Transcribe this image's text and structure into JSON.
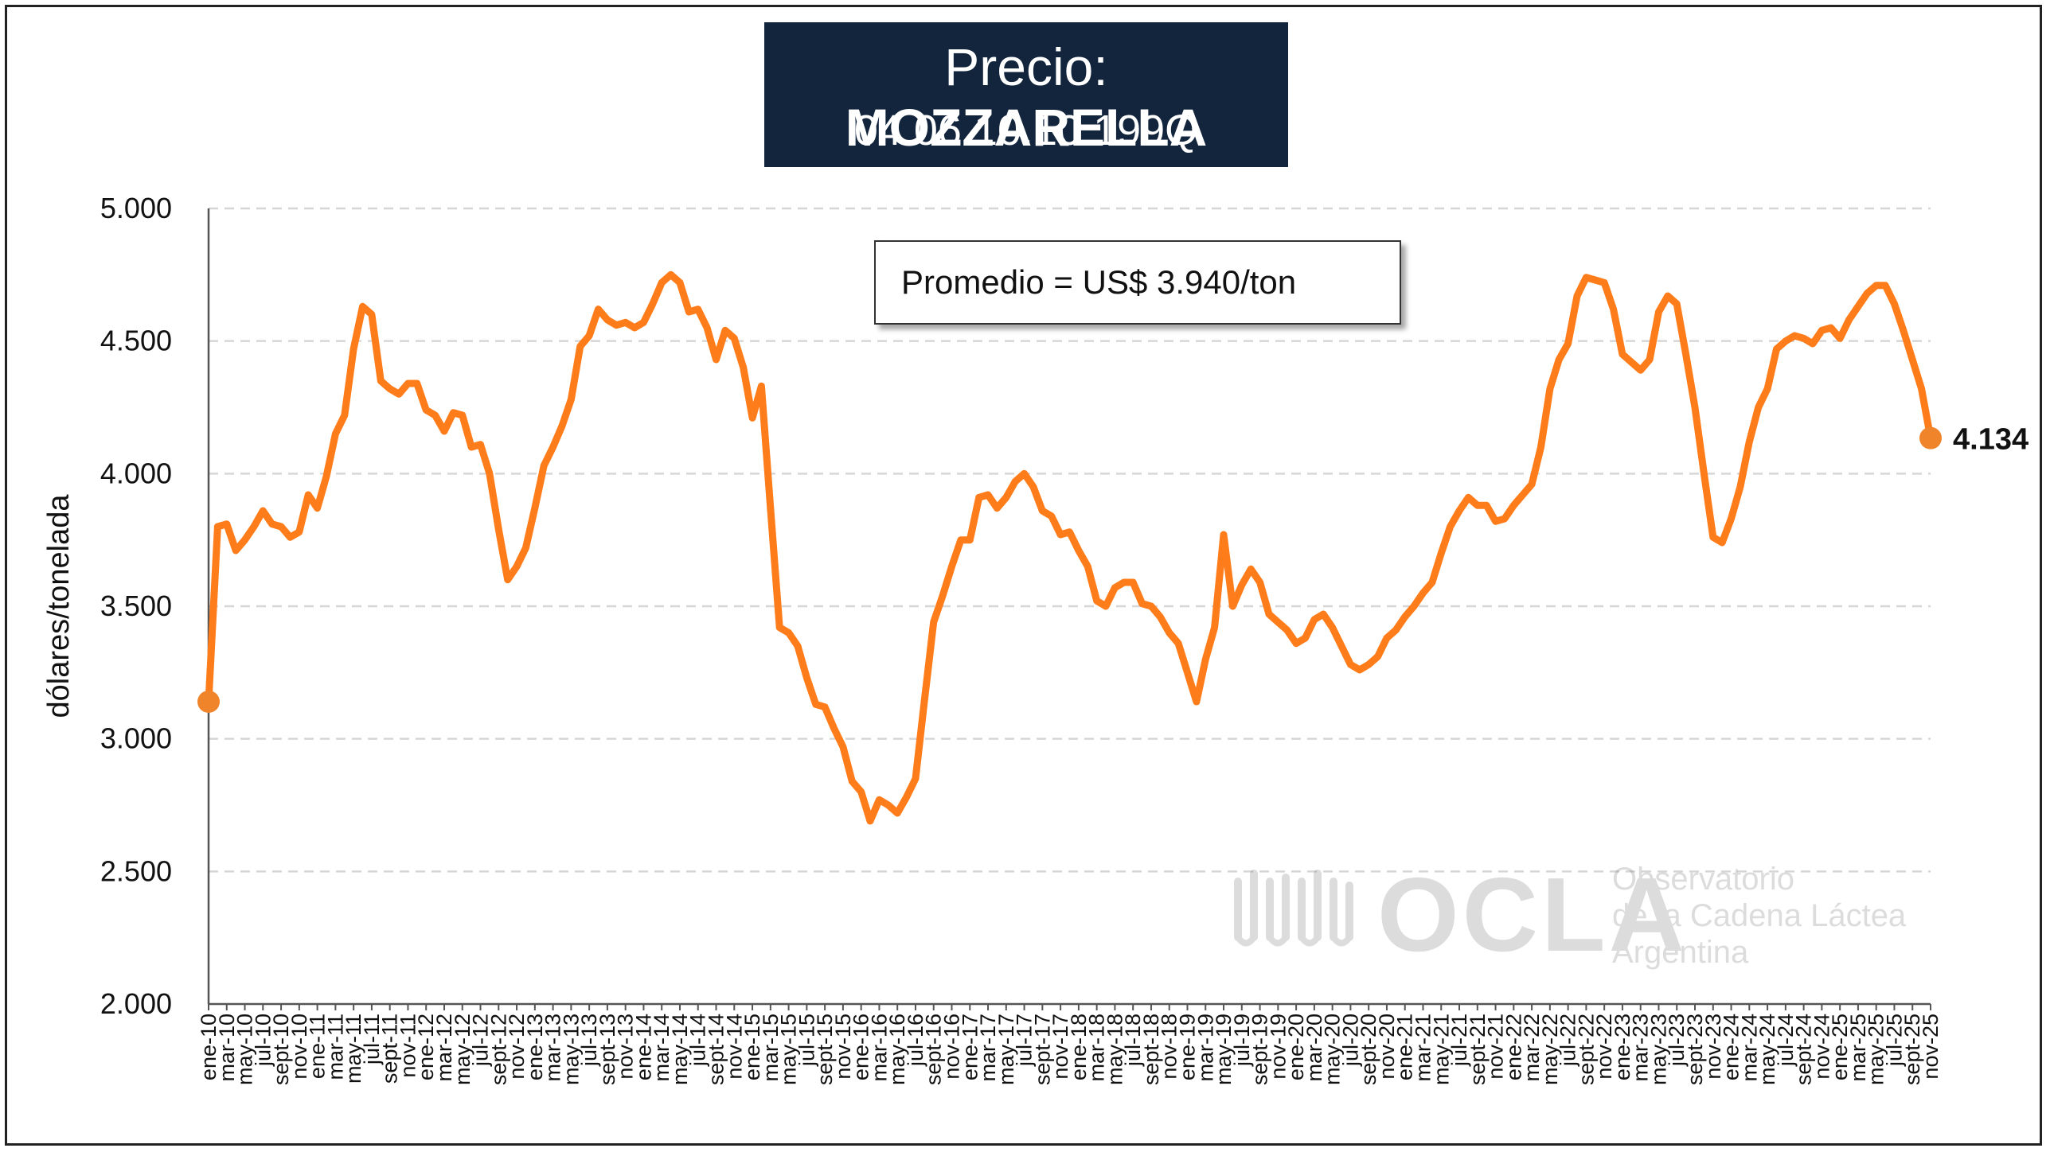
{
  "title": {
    "prefix": "Precio: ",
    "product": "MOZZARELLA",
    "code": "04.06.10.10.199Q"
  },
  "annotation": {
    "promedio": "Promedio = US$ 3.940/ton"
  },
  "watermark": {
    "logo_text": "OCLA",
    "line1": "Observatorio",
    "line2": "de la Cadena Láctea",
    "line3": "Argentina"
  },
  "colors": {
    "line": "#ff7c1a",
    "marker": "#f0842a",
    "grid": "#d6d6d6",
    "title_bg": "#13253d"
  },
  "chart_data": {
    "type": "line",
    "title": "Precio: MOZZARELLA",
    "subtitle": "04.06.10.10.199Q",
    "ylabel": "dólares/tonelada",
    "xlabel": "",
    "ylim": [
      2000,
      5000
    ],
    "yticks": [
      2000,
      2500,
      3000,
      3500,
      4000,
      4500,
      5000
    ],
    "ytick_labels": [
      "2.000",
      "2.500",
      "3.000",
      "3.500",
      "4.000",
      "4.500",
      "5.000"
    ],
    "grid": true,
    "x_start": "ene-10",
    "x_end": "nov-25",
    "last_value_label": "4.134",
    "x_tick_labels": [
      "ene-10",
      "mar-10",
      "may-10",
      "jul-10",
      "sept-10",
      "nov-10",
      "ene-11",
      "mar-11",
      "may-11",
      "jul-11",
      "sept-11",
      "nov-11",
      "ene-12",
      "mar-12",
      "may-12",
      "jul-12",
      "sept-12",
      "nov-12",
      "ene-13",
      "mar-13",
      "may-13",
      "jul-13",
      "sept-13",
      "nov-13",
      "ene-14",
      "mar-14",
      "may-14",
      "jul-14",
      "sept-14",
      "nov-14",
      "ene-15",
      "mar-15",
      "may-15",
      "jul-15",
      "sept-15",
      "nov-15",
      "ene-16",
      "mar-16",
      "may-16",
      "jul-16",
      "sept-16",
      "nov-16",
      "ene-17",
      "mar-17",
      "may-17",
      "jul-17",
      "sept-17",
      "nov-17",
      "ene-18",
      "mar-18",
      "may-18",
      "jul-18",
      "sept-18",
      "nov-18",
      "ene-19",
      "mar-19",
      "may-19",
      "jul-19",
      "sept-19",
      "nov-19",
      "ene-20",
      "mar-20",
      "may-20",
      "jul-20",
      "sept-20",
      "nov-20",
      "ene-21",
      "mar-21",
      "may-21",
      "jul-21",
      "sept-21",
      "nov-21",
      "ene-22",
      "mar-22",
      "may-22",
      "jul-22",
      "sept-22",
      "nov-22",
      "ene-23",
      "mar-23",
      "may-23",
      "jul-23",
      "sept-23",
      "nov-23",
      "ene-24",
      "mar-24",
      "may-24",
      "jul-24",
      "sept-24",
      "nov-24",
      "ene-25",
      "mar-25",
      "may-25",
      "jul-25",
      "sept-25",
      "nov-25"
    ],
    "series": [
      {
        "values": [
          3140,
          3800,
          3810,
          3710,
          3750,
          3800,
          3860,
          3810,
          3800,
          3760,
          3780,
          3920,
          3870,
          3990,
          4150,
          4220,
          4470,
          4630,
          4600,
          4350,
          4320,
          4300,
          4340,
          4340,
          4240,
          4220,
          4160,
          4230,
          4220,
          4100,
          4110,
          4000,
          3790,
          3600,
          3650,
          3720,
          3870,
          4030,
          4100,
          4180,
          4280,
          4480,
          4520,
          4620,
          4580,
          4560,
          4570,
          4550,
          4570,
          4640,
          4720,
          4750,
          4720,
          4610,
          4620,
          4550,
          4430,
          4540,
          4510,
          4400,
          4210,
          4330,
          3870,
          3420,
          3400,
          3350,
          3230,
          3130,
          3120,
          3040,
          2970,
          2840,
          2800,
          2690,
          2770,
          2750,
          2720,
          2780,
          2850,
          3150,
          3440,
          3540,
          3650,
          3750,
          3750,
          3910,
          3920,
          3870,
          3910,
          3970,
          4000,
          3950,
          3860,
          3840,
          3770,
          3780,
          3710,
          3650,
          3520,
          3500,
          3570,
          3590,
          3590,
          3510,
          3500,
          3460,
          3400,
          3360,
          3250,
          3140,
          3300,
          3420,
          3770,
          3500,
          3580,
          3640,
          3590,
          3470,
          3440,
          3410,
          3360,
          3380,
          3450,
          3470,
          3420,
          3350,
          3280,
          3260,
          3280,
          3310,
          3380,
          3410,
          3460,
          3500,
          3550,
          3590,
          3700,
          3800,
          3860,
          3910,
          3880,
          3880,
          3820,
          3830,
          3880,
          3920,
          3960,
          4100,
          4320,
          4430,
          4490,
          4670,
          4740,
          4730,
          4720,
          4620,
          4450,
          4420,
          4390,
          4430,
          4610,
          4670,
          4640,
          4450,
          4250,
          4000,
          3760,
          3740,
          3830,
          3950,
          4120,
          4250,
          4320,
          4470,
          4500,
          4520,
          4510,
          4490,
          4540,
          4550,
          4510,
          4580,
          4630,
          4680,
          4710,
          4710,
          4640,
          4540,
          4430,
          4320,
          4134
        ]
      }
    ]
  }
}
